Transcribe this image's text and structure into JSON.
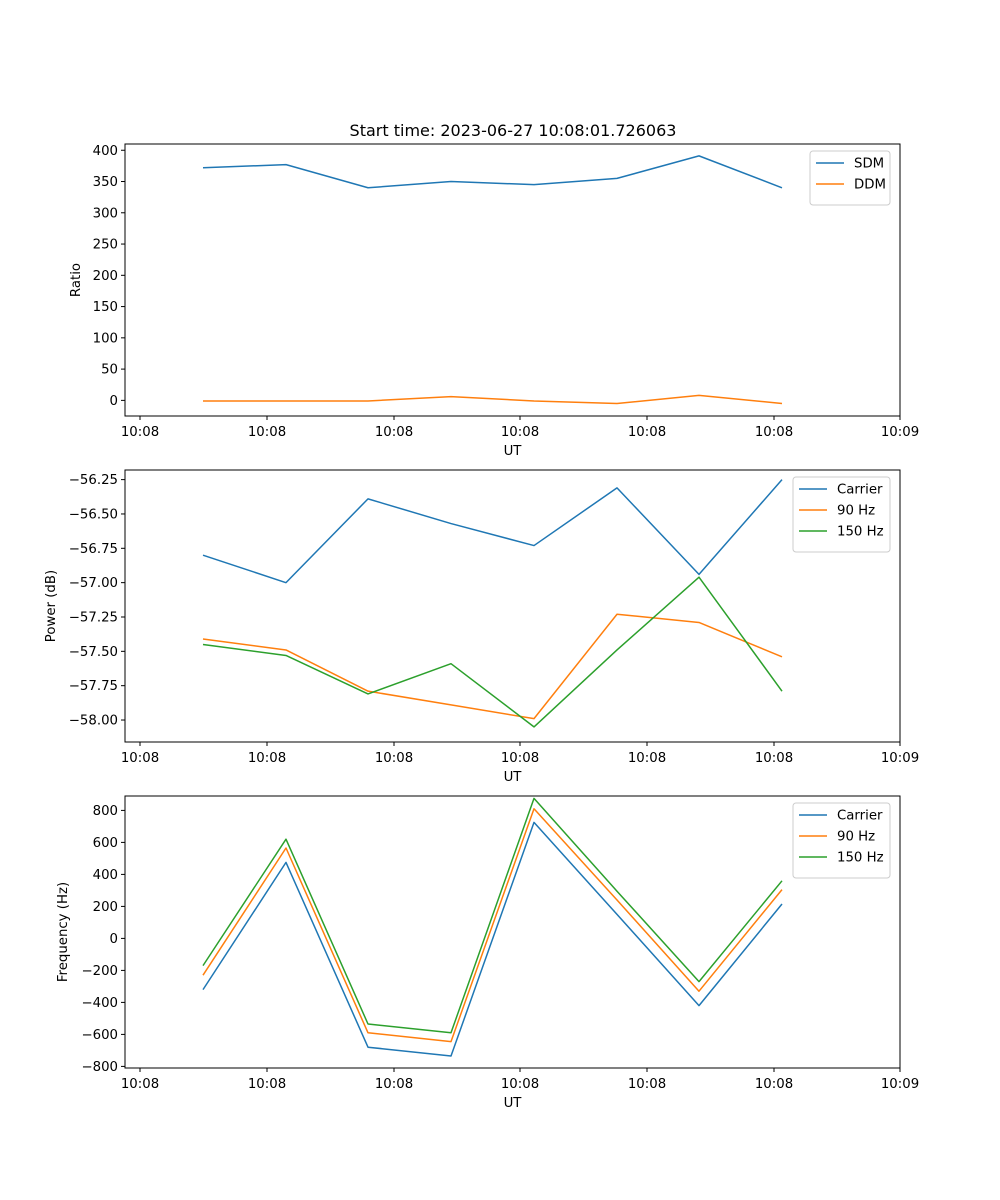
{
  "title": "Start time: 2023-06-27 10:08:01.726063",
  "chart_data": [
    {
      "type": "line",
      "ylabel": "Ratio",
      "xlabel": "UT",
      "x_tick_labels": [
        "10:08",
        "10:08",
        "10:08",
        "10:08",
        "10:08",
        "10:08",
        "10:08"
      ],
      "x_end_tick_label": "10:09",
      "ylim": [
        -25,
        410
      ],
      "yticks": [
        0,
        50,
        100,
        150,
        200,
        250,
        300,
        350,
        400
      ],
      "ytick_labels": [
        "0",
        "50",
        "100",
        "150",
        "200",
        "250",
        "300",
        "350",
        "400"
      ],
      "legend_position": "top-right",
      "series": [
        {
          "name": "SDM",
          "color": "#1f77b4",
          "values": [
            372,
            377,
            340,
            350,
            345,
            355,
            391,
            340
          ]
        },
        {
          "name": "DDM",
          "color": "#ff7f0e",
          "values": [
            -1,
            -1,
            -1,
            6,
            -1,
            -5,
            8,
            -5
          ]
        }
      ]
    },
    {
      "type": "line",
      "ylabel": "Power (dB)",
      "xlabel": "UT",
      "x_tick_labels": [
        "10:08",
        "10:08",
        "10:08",
        "10:08",
        "10:08",
        "10:08",
        "10:08"
      ],
      "x_end_tick_label": "10:09",
      "ylim": [
        -58.16,
        -56.18
      ],
      "yticks": [
        -58.0,
        -57.75,
        -57.5,
        -57.25,
        -57.0,
        -56.75,
        -56.5,
        -56.25
      ],
      "ytick_labels": [
        "−58.00",
        "−57.75",
        "−57.50",
        "−57.25",
        "−57.00",
        "−56.75",
        "−56.50",
        "−56.25"
      ],
      "legend_position": "top-right",
      "series": [
        {
          "name": "Carrier",
          "color": "#1f77b4",
          "values": [
            -56.8,
            -57.0,
            -56.39,
            -56.57,
            -56.73,
            -56.31,
            -56.94,
            -56.25
          ]
        },
        {
          "name": "90 Hz",
          "color": "#ff7f0e",
          "values": [
            -57.41,
            -57.49,
            -57.79,
            -57.89,
            -57.99,
            -57.23,
            -57.29,
            -57.54
          ]
        },
        {
          "name": "150 Hz",
          "color": "#2ca02c",
          "values": [
            -57.45,
            -57.53,
            -57.81,
            -57.59,
            -58.05,
            -57.49,
            -56.96,
            -57.79
          ]
        }
      ]
    },
    {
      "type": "line",
      "ylabel": "Frequency (Hz)",
      "xlabel": "UT",
      "x_tick_labels": [
        "10:08",
        "10:08",
        "10:08",
        "10:08",
        "10:08",
        "10:08",
        "10:08"
      ],
      "x_end_tick_label": "10:09",
      "ylim": [
        -810,
        890
      ],
      "yticks": [
        -800,
        -600,
        -400,
        -200,
        0,
        200,
        400,
        600,
        800
      ],
      "ytick_labels": [
        "−800",
        "−600",
        "−400",
        "−200",
        "0",
        "200",
        "400",
        "600",
        "800"
      ],
      "legend_position": "top-right",
      "series": [
        {
          "name": "Carrier",
          "color": "#1f77b4",
          "values": [
            -320,
            475,
            -680,
            -735,
            725,
            150,
            -420,
            215
          ]
        },
        {
          "name": "90 Hz",
          "color": "#ff7f0e",
          "values": [
            -230,
            565,
            -590,
            -645,
            810,
            240,
            -330,
            305
          ]
        },
        {
          "name": "150 Hz",
          "color": "#2ca02c",
          "values": [
            -170,
            620,
            -535,
            -590,
            875,
            295,
            -270,
            360
          ]
        }
      ]
    }
  ]
}
